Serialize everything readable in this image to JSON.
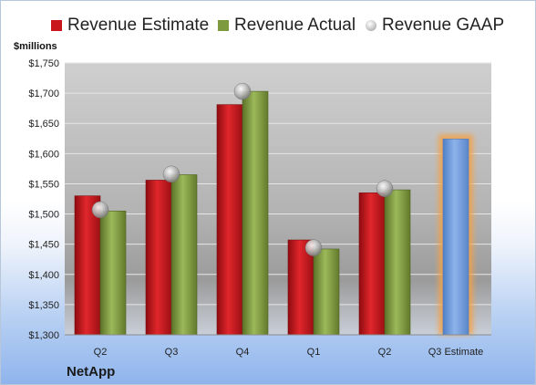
{
  "chart_data": {
    "type": "bar",
    "categories": [
      "Q2",
      "Q3",
      "Q4",
      "Q1",
      "Q2",
      "Q3 Estimate"
    ],
    "series": [
      {
        "name": "Revenue Estimate",
        "color": "#c8161c",
        "values": [
          1530,
          1556,
          1681,
          1457,
          1535,
          1624
        ]
      },
      {
        "name": "Revenue Actual",
        "color": "#7d9a3e",
        "values": [
          1505,
          1565,
          1703,
          1442,
          1540,
          null
        ]
      },
      {
        "name": "Revenue GAAP",
        "color": "#b8b8b8",
        "values": [
          1507,
          1566,
          1703,
          1444,
          1542,
          null
        ]
      }
    ],
    "highlight": {
      "category_index": 5,
      "color": "#6f9ad8",
      "glow": "#f3a24a"
    },
    "ylabel": "$millions",
    "ylim": [
      1300,
      1750
    ],
    "yticks": [
      "$1,300",
      "$1,350",
      "$1,400",
      "$1,450",
      "$1,500",
      "$1,550",
      "$1,600",
      "$1,650",
      "$1,700",
      "$1,750"
    ],
    "grid": true,
    "legend": "top"
  },
  "footer": {
    "company": "NetApp"
  }
}
